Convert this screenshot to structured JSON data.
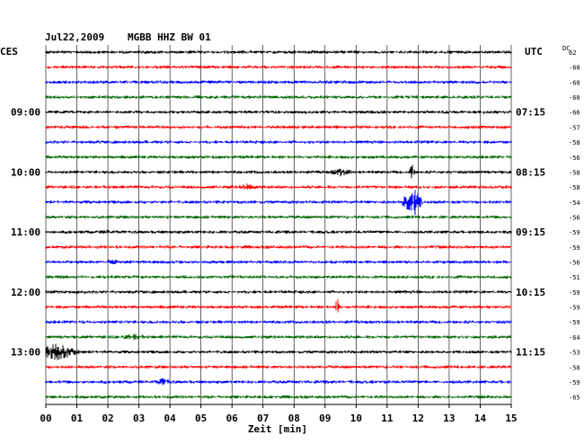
{
  "header": {
    "date": "Jul22,2009",
    "station": "MGBB HHZ BW 01",
    "left_label": "CES",
    "right_label": "UTC",
    "dc_label": "DC"
  },
  "colors": {
    "trace_colors": [
      "#000000",
      "#ff0000",
      "#0000ff",
      "#006600"
    ],
    "grid": "#000000",
    "background": "#ffffff"
  },
  "chart_data": {
    "type": "line",
    "title": "Jul22,2009  MGBB HHZ BW 01",
    "xlabel": "Zeit [min]",
    "ylabel": "",
    "x_ticks": [
      "00",
      "01",
      "02",
      "03",
      "04",
      "05",
      "06",
      "07",
      "08",
      "09",
      "10",
      "11",
      "12",
      "13",
      "14",
      "15"
    ],
    "xlim": [
      0,
      15
    ],
    "grid": true,
    "hour_labels_local": [
      "09:00",
      "10:00",
      "11:00",
      "12:00",
      "13:00"
    ],
    "hour_labels_utc": [
      "07:15",
      "08:15",
      "09:15",
      "10:15",
      "11:15"
    ],
    "hour_label_rows": [
      4,
      8,
      12,
      16,
      20
    ],
    "dc_offsets": [
      "62",
      "-60",
      "-60",
      "-60",
      "-66",
      "-57",
      "-58",
      "-56",
      "-58",
      "-58",
      "-54",
      "-56",
      "-59",
      "-59",
      "-56",
      "-51",
      "-59",
      "-59",
      "-59",
      "-64",
      "-53",
      "-58",
      "-59",
      "-65"
    ],
    "trace_count": 24,
    "noise_level": [
      0.3,
      0.3,
      0.3,
      0.3,
      0.3,
      0.3,
      0.3,
      0.3,
      0.3,
      0.3,
      0.3,
      0.3,
      0.3,
      0.3,
      0.3,
      0.3,
      0.3,
      0.3,
      0.3,
      0.3,
      0.3,
      0.3,
      0.3,
      0.3
    ],
    "events": [
      {
        "row": 8,
        "minute": 9.5,
        "amplitude": 5,
        "duration": 0.6
      },
      {
        "row": 8,
        "minute": 11.8,
        "amplitude": 14,
        "duration": 0.1
      },
      {
        "row": 9,
        "minute": 6.5,
        "amplitude": 4,
        "duration": 0.6
      },
      {
        "row": 10,
        "minute": 11.8,
        "amplitude": 20,
        "duration": 0.4
      },
      {
        "row": 12,
        "minute": 2.0,
        "amplitude": 3,
        "duration": 0.5
      },
      {
        "row": 14,
        "minute": 2.2,
        "amplitude": 4,
        "duration": 0.5
      },
      {
        "row": 17,
        "minute": 9.4,
        "amplitude": 9,
        "duration": 0.15
      },
      {
        "row": 19,
        "minute": 2.8,
        "amplitude": 4,
        "duration": 0.8
      },
      {
        "row": 20,
        "minute": 0.35,
        "amplitude": 10,
        "duration": 0.9
      },
      {
        "row": 22,
        "minute": 3.8,
        "amplitude": 5,
        "duration": 0.4
      }
    ]
  }
}
